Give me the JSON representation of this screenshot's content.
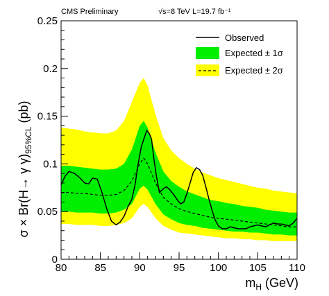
{
  "header": {
    "left": "CMS Preliminary",
    "right": "√s=8 TeV L=19.7 fb⁻¹"
  },
  "chart_data": {
    "type": "line",
    "xlabel": "m",
    "xlabel_sub": "H",
    "xlabel_unit": " (GeV)",
    "ylabel": "σ × Br(H→ γ γ)",
    "ylabel_sub": "95%CL",
    "ylabel_unit": " (pb)",
    "xlim": [
      80,
      110
    ],
    "ylim": [
      0,
      0.25
    ],
    "x_ticks": [
      80,
      85,
      90,
      95,
      100,
      105,
      110
    ],
    "x_tick_labels": [
      "80",
      "85",
      "90",
      "95",
      "100",
      "105",
      "110"
    ],
    "y_ticks": [
      0,
      0.05,
      0.1,
      0.15,
      0.2,
      0.25
    ],
    "y_tick_labels": [
      "0",
      "0.05",
      "0.1",
      "0.15",
      "0.2",
      "0.25"
    ],
    "legend_position": "top-right",
    "legend": {
      "observed": "Observed",
      "expected_1sigma": "Expected ± 1σ",
      "expected_2sigma": "Expected ± 2σ"
    },
    "colors": {
      "band_2sigma": "#ffff00",
      "band_1sigma": "#00ee00",
      "observed": "#000000",
      "expected": "#000000"
    },
    "x": [
      80,
      81,
      82,
      83,
      84,
      85,
      86,
      87,
      88,
      89,
      90,
      90.5,
      91,
      92,
      93,
      94,
      95,
      96,
      97,
      98,
      99,
      100,
      101,
      102,
      103,
      104,
      105,
      106,
      107,
      108,
      109,
      110
    ],
    "expected": [
      0.07,
      0.07,
      0.069,
      0.069,
      0.068,
      0.067,
      0.067,
      0.068,
      0.072,
      0.082,
      0.1,
      0.106,
      0.1,
      0.08,
      0.065,
      0.058,
      0.053,
      0.05,
      0.048,
      0.046,
      0.044,
      0.043,
      0.042,
      0.041,
      0.04,
      0.039,
      0.038,
      0.037,
      0.036,
      0.035,
      0.034,
      0.034
    ],
    "band_1sigma_low": [
      0.05,
      0.05,
      0.049,
      0.049,
      0.049,
      0.048,
      0.048,
      0.049,
      0.052,
      0.058,
      0.074,
      0.077,
      0.073,
      0.058,
      0.047,
      0.042,
      0.038,
      0.036,
      0.035,
      0.033,
      0.032,
      0.031,
      0.03,
      0.029,
      0.029,
      0.028,
      0.028,
      0.027,
      0.026,
      0.026,
      0.025,
      0.025
    ],
    "band_1sigma_high": [
      0.098,
      0.098,
      0.097,
      0.096,
      0.095,
      0.094,
      0.094,
      0.095,
      0.1,
      0.115,
      0.14,
      0.145,
      0.138,
      0.112,
      0.092,
      0.082,
      0.076,
      0.071,
      0.068,
      0.065,
      0.062,
      0.061,
      0.059,
      0.058,
      0.056,
      0.055,
      0.054,
      0.052,
      0.051,
      0.05,
      0.049,
      0.049
    ],
    "band_2sigma_low": [
      0.037,
      0.037,
      0.036,
      0.036,
      0.036,
      0.035,
      0.035,
      0.036,
      0.038,
      0.043,
      0.055,
      0.058,
      0.055,
      0.043,
      0.035,
      0.031,
      0.028,
      0.027,
      0.026,
      0.025,
      0.024,
      0.023,
      0.022,
      0.022,
      0.021,
      0.021,
      0.02,
      0.02,
      0.019,
      0.019,
      0.019,
      0.019
    ],
    "band_2sigma_high": [
      0.138,
      0.137,
      0.136,
      0.134,
      0.133,
      0.132,
      0.132,
      0.135,
      0.145,
      0.165,
      0.185,
      0.19,
      0.182,
      0.152,
      0.127,
      0.114,
      0.106,
      0.1,
      0.095,
      0.091,
      0.088,
      0.085,
      0.083,
      0.081,
      0.079,
      0.077,
      0.075,
      0.074,
      0.072,
      0.071,
      0.07,
      0.069
    ],
    "observed": {
      "x": [
        80,
        80.5,
        81,
        81.7,
        82.3,
        83,
        83.5,
        84,
        84.6,
        85.2,
        85.8,
        86.4,
        87,
        87.5,
        88,
        88.5,
        89,
        89.4,
        89.8,
        90.2,
        90.6,
        90.9,
        91.2,
        91.5,
        91.8,
        92.1,
        92.5,
        93,
        93.4,
        93.8,
        94.3,
        94.8,
        95.2,
        95.6,
        96,
        96.4,
        96.8,
        97.2,
        97.6,
        98,
        98.4,
        98.8,
        99.2,
        99.6,
        100,
        100.5,
        101,
        101.5,
        102,
        102.5,
        103,
        103.5,
        104,
        104.5,
        105,
        105.5,
        106,
        106.5,
        107,
        107.5,
        108,
        108.5,
        109,
        109.5,
        110
      ],
      "y": [
        0.078,
        0.087,
        0.092,
        0.09,
        0.086,
        0.08,
        0.079,
        0.085,
        0.084,
        0.07,
        0.053,
        0.04,
        0.036,
        0.039,
        0.045,
        0.055,
        0.063,
        0.078,
        0.1,
        0.118,
        0.128,
        0.135,
        0.132,
        0.126,
        0.105,
        0.088,
        0.07,
        0.074,
        0.076,
        0.073,
        0.068,
        0.062,
        0.058,
        0.06,
        0.069,
        0.08,
        0.091,
        0.096,
        0.094,
        0.088,
        0.076,
        0.063,
        0.051,
        0.041,
        0.035,
        0.032,
        0.032,
        0.034,
        0.033,
        0.032,
        0.032,
        0.032,
        0.034,
        0.035,
        0.036,
        0.035,
        0.034,
        0.036,
        0.038,
        0.037,
        0.037,
        0.036,
        0.035,
        0.038,
        0.043
      ]
    }
  }
}
